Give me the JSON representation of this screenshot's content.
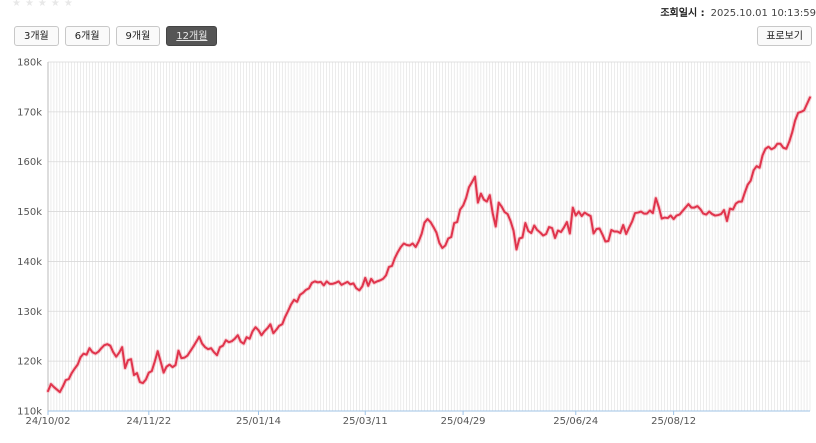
{
  "header": {
    "timestamp_label": "조회일시 :",
    "timestamp_value": "2025.10.01 10:13:59"
  },
  "periods": [
    "3개월",
    "6개월",
    "9개월",
    "12개월"
  ],
  "active_period": "12개월",
  "profile_button": "표로보기",
  "colors": {
    "line": "#e0344c",
    "line_shadow": "#f3b9c1",
    "grid": "#d9d9d9",
    "axis": "#9fc3e6",
    "active_button": "#555555"
  },
  "chart_data": {
    "type": "line",
    "title": "",
    "xlabel": "",
    "ylabel": "",
    "ylim": [
      110000,
      180000
    ],
    "y_ticks": [
      110000,
      120000,
      130000,
      140000,
      150000,
      160000,
      170000,
      180000
    ],
    "y_tick_labels": [
      "110k",
      "120k",
      "130k",
      "140k",
      "150k",
      "160k",
      "170k",
      "180k"
    ],
    "x_tick_labels": [
      "24/10/02",
      "24/11/22",
      "25/01/14",
      "25/03/11",
      "25/04/29",
      "25/06/24",
      "25/08/12"
    ],
    "x_tick_index": [
      0,
      34,
      71,
      107,
      140,
      178,
      211
    ],
    "grid": true,
    "legend": "none",
    "series": [
      {
        "values": [
          114000,
          115400,
          114800,
          114300,
          113800,
          114900,
          116200,
          116400,
          117600,
          118500,
          119300,
          120800,
          121500,
          121300,
          122600,
          121800,
          121500,
          121900,
          122600,
          123200,
          123400,
          123100,
          121800,
          120900,
          121700,
          122800,
          118600,
          120200,
          120400,
          117200,
          117600,
          115800,
          115600,
          116300,
          117700,
          118000,
          119900,
          122000,
          119900,
          117700,
          118900,
          119300,
          118800,
          119200,
          122100,
          120600,
          120700,
          121100,
          122000,
          122900,
          123900,
          124900,
          123500,
          122800,
          122400,
          122600,
          121800,
          121200,
          122800,
          123100,
          124200,
          123800,
          124000,
          124500,
          125200,
          123900,
          123500,
          124800,
          124500,
          126000,
          126800,
          126200,
          125200,
          126000,
          126600,
          127400,
          125600,
          126300,
          127100,
          127400,
          128900,
          130100,
          131400,
          132300,
          131900,
          133300,
          133700,
          134300,
          134600,
          135700,
          136000,
          135800,
          135900,
          135200,
          136000,
          135500,
          135500,
          135700,
          136000,
          135300,
          135600,
          135900,
          135400,
          135600,
          134600,
          134200,
          135000,
          136700,
          135100,
          136500,
          135700,
          136000,
          136200,
          136500,
          137200,
          138900,
          139100,
          140700,
          141900,
          142900,
          143600,
          143300,
          143200,
          143600,
          142900,
          144000,
          145500,
          147800,
          148500,
          147900,
          146900,
          145800,
          143700,
          142700,
          143200,
          144600,
          144900,
          147700,
          147900,
          150400,
          151200,
          152700,
          154900,
          155900,
          157000,
          151800,
          153600,
          152400,
          152000,
          153300,
          149600,
          147000,
          151800,
          151000,
          149900,
          149500,
          148100,
          146200,
          142400,
          144600,
          144800,
          147700,
          146100,
          145700,
          147200,
          146300,
          145800,
          145200,
          145500,
          146900,
          146700,
          144700,
          146200,
          145900,
          146800,
          147900,
          145600,
          150800,
          149200,
          150000,
          149100,
          149800,
          149400,
          149100,
          145600,
          146500,
          146600,
          145400,
          144000,
          144100,
          146300,
          146000,
          146000,
          145700,
          147300,
          145500,
          146800,
          148000,
          149700,
          149800,
          150000,
          149600,
          149600,
          150200,
          149700,
          152700,
          150900,
          148600,
          148800,
          148700,
          149200,
          148500,
          149200,
          149400,
          150100,
          150800,
          151500,
          150800,
          150800,
          151100,
          150500,
          149600,
          149400,
          150000,
          149500,
          149200,
          149300,
          149500,
          150300,
          148100,
          150600,
          150400,
          151600,
          152000,
          152000,
          153800,
          155400,
          156200,
          158300,
          159100,
          158800,
          161300,
          162600,
          163000,
          162500,
          162800,
          163600,
          163600,
          162800,
          162600,
          164000,
          165900,
          168300,
          169800,
          170000,
          170300,
          171600,
          172900
        ]
      }
    ]
  }
}
